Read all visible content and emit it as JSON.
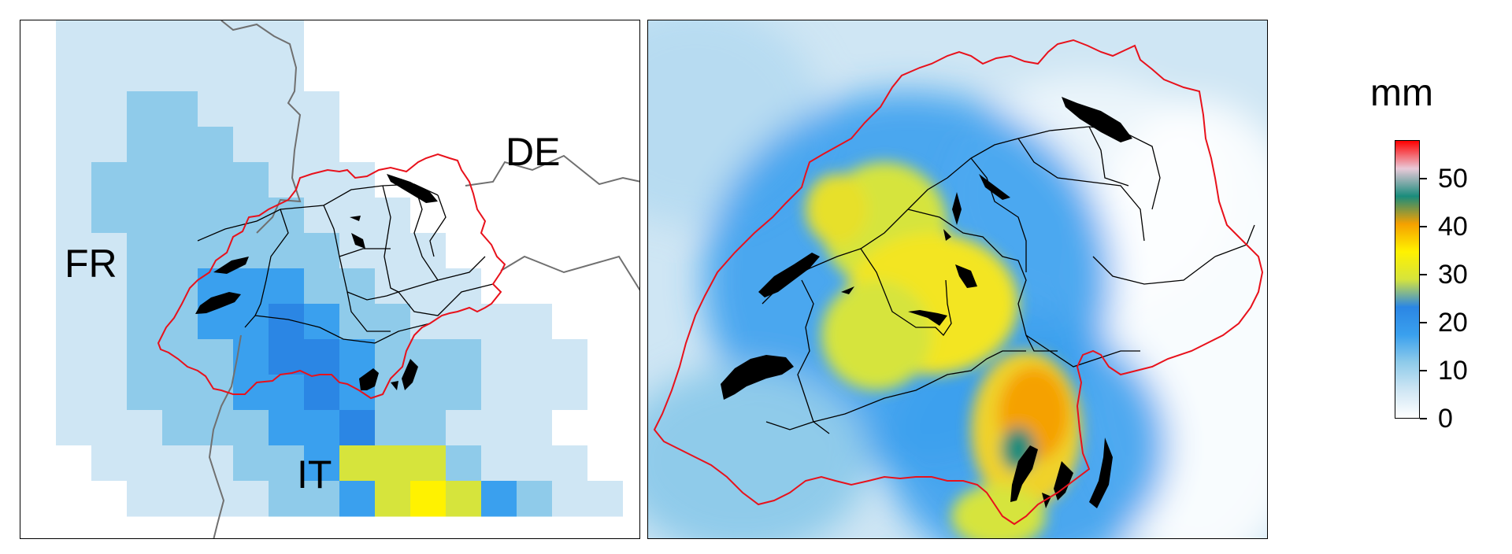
{
  "map": {
    "left_panel": {
      "country_labels": {
        "fr": "FR",
        "de": "DE",
        "it": "IT"
      }
    },
    "colors": {
      "border_switzerland": "#e8111b",
      "border_countries": "#707070",
      "cantons_rivers": "#000000",
      "lakes": "#000000"
    }
  },
  "legend": {
    "title": "mm",
    "min": 0,
    "max": 58,
    "ticks": [
      "0",
      "10",
      "20",
      "30",
      "40",
      "50"
    ],
    "colormap": [
      "#ffffff",
      "#cfe6f4",
      "#8fcbea",
      "#3aa0ee",
      "#2b86e4",
      "#d6e43c",
      "#fff200",
      "#f5a100",
      "#1a8c7c",
      "#e9c9d8",
      "#ff0000"
    ]
  }
}
